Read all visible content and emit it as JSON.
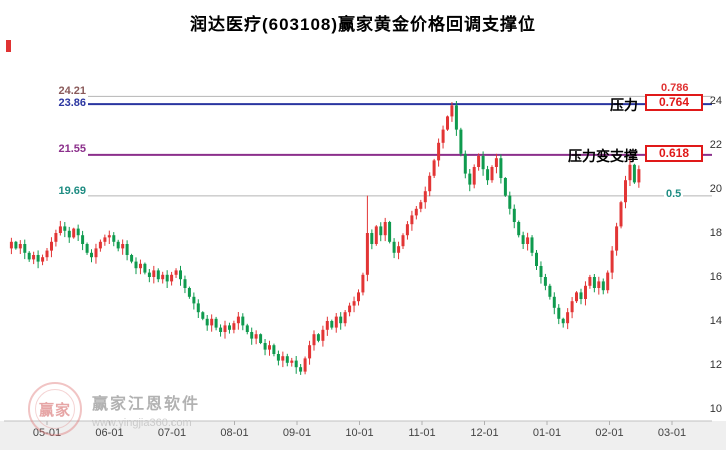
{
  "title": "润达医疗(603108)赢家黄金价格回调支撑位",
  "levels": [
    {
      "price": 24.21,
      "price_label": "24.21",
      "ratio_label": "0.786",
      "price_color": "#8a5a5a",
      "ratio_color": "#e03232",
      "line_color": "#b5b5b5",
      "line_width": 1
    },
    {
      "price": 23.86,
      "price_label": "23.86",
      "ratio_label": "0.764",
      "annotation": "压力",
      "price_color": "#2a35a0",
      "ratio_color": "#e01919",
      "line_color": "#2a35a0",
      "line_width": 2
    },
    {
      "price": 21.55,
      "price_label": "21.55",
      "ratio_label": "0.618",
      "annotation": "压力变支撑",
      "price_color": "#8b2f8b",
      "ratio_color": "#e01919",
      "line_color": "#8b2f8b",
      "line_width": 2
    },
    {
      "price": 19.69,
      "price_label": "19.69",
      "ratio_label": "0.5",
      "price_color": "#1e8c82",
      "ratio_color": "#1e8c82",
      "line_color": "#b5b5b5",
      "line_width": 1
    }
  ],
  "x_axis": {
    "labels": [
      "05-01",
      "06-01",
      "07-01",
      "08-01",
      "09-01",
      "10-01",
      "11-01",
      "12-01",
      "01-01",
      "02-01",
      "03-01"
    ]
  },
  "y_axis": {
    "labels": [
      "24",
      "22",
      "20",
      "18",
      "16",
      "14",
      "12",
      "10"
    ],
    "min": 10,
    "max": 24
  },
  "watermark": {
    "brand": "赢家江恩软件",
    "url": "www.yingjia360.com",
    "logo_text": "赢家"
  },
  "chart_data": {
    "type": "candlestick",
    "stock_name": "润达医疗",
    "stock_code": "603108",
    "title": "润达医疗(603108)赢家黄金价格回调支撑位",
    "ylim": [
      10,
      24
    ],
    "support_pressure_levels": [
      {
        "price": 24.21,
        "fib_ratio": 0.786
      },
      {
        "price": 23.86,
        "fib_ratio": 0.764,
        "role": "压力"
      },
      {
        "price": 21.55,
        "fib_ratio": 0.618,
        "role": "压力变支撑"
      },
      {
        "price": 19.69,
        "fib_ratio": 0.5
      }
    ],
    "up_color": "#e23535",
    "down_color": "#0f9a4e",
    "open_first": 17.3,
    "closes": [
      17.6,
      17.3,
      17.5,
      17.1,
      16.8,
      17.0,
      16.7,
      16.9,
      17.2,
      17.6,
      18.0,
      18.3,
      18.1,
      17.8,
      18.2,
      17.9,
      17.5,
      17.1,
      16.9,
      17.3,
      17.6,
      17.8,
      17.9,
      17.6,
      17.3,
      17.5,
      17.0,
      16.7,
      16.4,
      16.6,
      16.2,
      16.0,
      16.3,
      15.9,
      16.1,
      15.8,
      16.1,
      16.3,
      15.9,
      15.5,
      15.1,
      14.8,
      14.4,
      14.1,
      13.8,
      14.1,
      13.7,
      13.5,
      13.8,
      13.6,
      13.9,
      14.2,
      13.8,
      13.5,
      13.2,
      13.4,
      13.0,
      12.7,
      12.9,
      12.5,
      12.2,
      12.4,
      12.1,
      12.2,
      11.9,
      11.7,
      12.3,
      12.9,
      13.4,
      13.1,
      13.6,
      14.0,
      13.7,
      14.2,
      13.9,
      14.4,
      14.7,
      14.9,
      15.3,
      16.1,
      18.0,
      17.5,
      18.3,
      17.9,
      18.5,
      17.6,
      17.1,
      17.4,
      17.9,
      18.4,
      18.8,
      19.1,
      19.4,
      19.9,
      20.6,
      21.3,
      22.1,
      22.7,
      23.3,
      23.8,
      22.7,
      21.6,
      20.7,
      20.2,
      21.0,
      21.5,
      20.9,
      20.4,
      21.0,
      21.4,
      20.5,
      19.7,
      19.1,
      18.5,
      17.9,
      17.5,
      17.8,
      17.1,
      16.5,
      16.0,
      15.6,
      15.1,
      14.6,
      14.1,
      13.9,
      14.4,
      14.9,
      15.3,
      15.0,
      15.6,
      16.0,
      15.5,
      15.8,
      15.4,
      16.2,
      17.2,
      18.3,
      19.4,
      20.4,
      21.1,
      20.3,
      20.9
    ],
    "wick_overrides": {
      "11": {
        "h": 18.55
      },
      "65": {
        "l": 11.55
      },
      "80": {
        "h": 19.7
      },
      "99": {
        "h": 23.95
      },
      "124": {
        "l": 13.7
      },
      "139": {
        "h": 21.45
      }
    }
  }
}
